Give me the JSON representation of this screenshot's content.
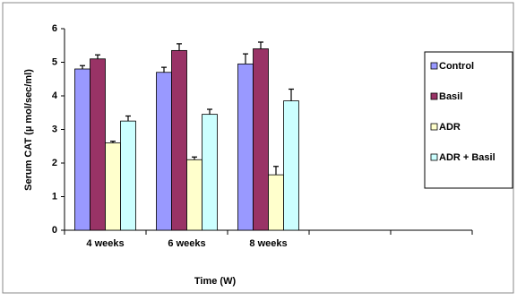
{
  "chart_data": {
    "type": "bar",
    "x_label": "Time (W)",
    "y_label": "Serum CAT (µ mol/sec/ml)",
    "categories": [
      "4 weeks",
      "6 weeks",
      "8 weeks",
      null,
      null
    ],
    "series": [
      {
        "name": "Control",
        "color": "#9999ff",
        "values": [
          4.8,
          4.7,
          4.95,
          null,
          null
        ],
        "errors": [
          0.1,
          0.15,
          0.3,
          null,
          null
        ]
      },
      {
        "name": "Basil",
        "color": "#993366",
        "values": [
          5.1,
          5.35,
          5.4,
          null,
          null
        ],
        "errors": [
          0.12,
          0.2,
          0.2,
          null,
          null
        ]
      },
      {
        "name": "ADR",
        "color": "#ffffcc",
        "values": [
          2.6,
          2.1,
          1.65,
          null,
          null
        ],
        "errors": [
          0.05,
          0.08,
          0.25,
          null,
          null
        ]
      },
      {
        "name": "ADR + Basil",
        "color": "#ccffff",
        "values": [
          3.25,
          3.45,
          3.85,
          null,
          null
        ],
        "errors": [
          0.15,
          0.15,
          0.35,
          null,
          null
        ]
      }
    ],
    "ylim": [
      0,
      6
    ],
    "yticks": [
      0,
      1,
      2,
      3,
      4,
      5,
      6
    ],
    "legend": "right"
  }
}
